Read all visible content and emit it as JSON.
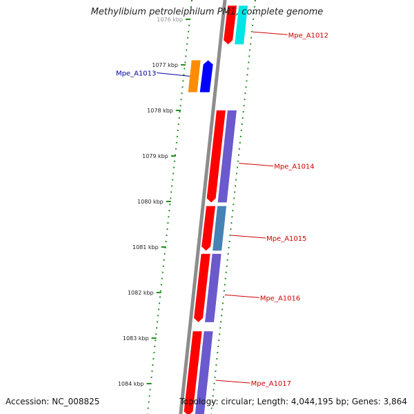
{
  "title": "Methylibium petroleiphilum PM1, complete genome",
  "footer": {
    "accession": "Accession: NC_008825",
    "topology": "Topology: circular; Length: 4,044,195 bp; Genes: 3,864"
  },
  "colors": {
    "forward_strand": "#ff0000",
    "reverse_strand": "#0000ff",
    "orange_feature": "#ff8c00",
    "cog_purple": "#6a5acd",
    "cog_steelblue": "#4682b4",
    "cog_cyan": "#00e5e5",
    "backbone": "#8c8c8c",
    "dotted_ring": "#1e8c1e",
    "forward_label": "#cc0000",
    "reverse_label": "#00009c"
  },
  "ticks": [
    {
      "label": "1076 kbp",
      "kbp": 1076
    },
    {
      "label": "1077 kbp",
      "kbp": 1077
    },
    {
      "label": "1078 kbp",
      "kbp": 1078
    },
    {
      "label": "1079 kbp",
      "kbp": 1079
    },
    {
      "label": "1080 kbp",
      "kbp": 1080
    },
    {
      "label": "1081 kbp",
      "kbp": 1081
    },
    {
      "label": "1082 kbp",
      "kbp": 1082
    },
    {
      "label": "1083 kbp",
      "kbp": 1083
    },
    {
      "label": "1084 kbp",
      "kbp": 1084
    }
  ],
  "genes": [
    {
      "label": "Mpe_A1012",
      "start_kbp": 1075.7,
      "end_kbp": 1076.55,
      "strand": "forward",
      "cog_color": "cog_cyan"
    },
    {
      "label": "Mpe_A1013",
      "start_kbp": 1076.9,
      "end_kbp": 1077.6,
      "strand": "reverse",
      "cog_color": "orange_feature"
    },
    {
      "label": "Mpe_A1014",
      "start_kbp": 1078.0,
      "end_kbp": 1080.02,
      "strand": "forward",
      "cog_color": "cog_purple"
    },
    {
      "label": "Mpe_A1015",
      "start_kbp": 1080.1,
      "end_kbp": 1081.08,
      "strand": "forward",
      "cog_color": "cog_steelblue"
    },
    {
      "label": "Mpe_A1016",
      "start_kbp": 1081.15,
      "end_kbp": 1082.65,
      "strand": "forward",
      "cog_color": "cog_purple"
    },
    {
      "label": "Mpe_A1017",
      "start_kbp": 1082.85,
      "end_kbp": 1084.7,
      "strand": "forward",
      "cog_color": "cog_purple"
    }
  ]
}
